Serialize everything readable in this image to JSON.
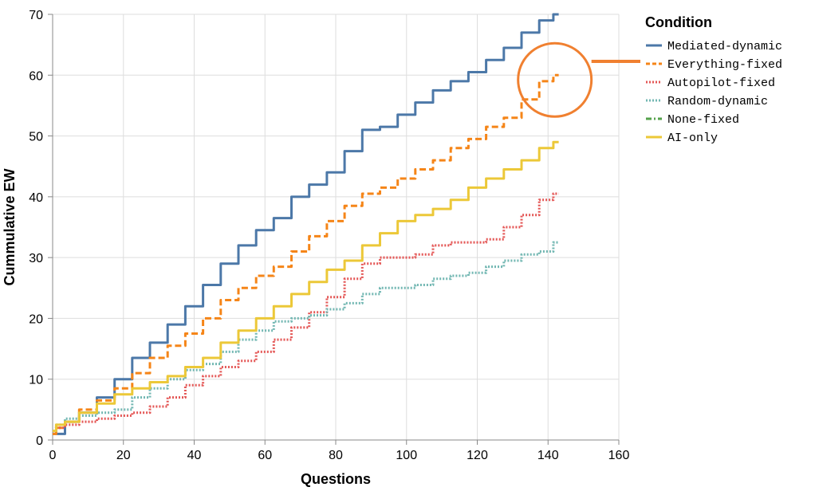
{
  "chart_data": {
    "type": "line",
    "xlabel": "Questions",
    "ylabel": "Cummulative EW",
    "xlim": [
      0,
      160
    ],
    "ylim": [
      0,
      70
    ],
    "x_ticks": [
      0,
      20,
      40,
      60,
      80,
      100,
      120,
      140,
      160
    ],
    "y_ticks": [
      0,
      10,
      20,
      30,
      40,
      50,
      60,
      70
    ],
    "grid": true,
    "legend": {
      "title": "Condition",
      "placement": "right"
    },
    "annotation": {
      "shape": "circle",
      "color": "#F08030",
      "target_series": "Everything-fixed",
      "at": [
        141,
        60
      ]
    },
    "series": [
      {
        "name": "Mediated-dynamic",
        "color": "#4C78A8",
        "dash": "solid",
        "x": [
          0,
          2,
          5,
          10,
          15,
          20,
          25,
          30,
          35,
          40,
          45,
          50,
          55,
          60,
          65,
          70,
          75,
          80,
          85,
          90,
          95,
          100,
          105,
          110,
          115,
          120,
          125,
          130,
          135,
          140,
          143
        ],
        "y": [
          1,
          1,
          3,
          4.5,
          7,
          10,
          13.5,
          16,
          19,
          22,
          25.5,
          29,
          32,
          34.5,
          36.5,
          40,
          42,
          44,
          47.5,
          51,
          51.5,
          53.5,
          55.5,
          57.5,
          59,
          60.5,
          62.5,
          64.5,
          67,
          69,
          70
        ]
      },
      {
        "name": "Everything-fixed",
        "color": "#F58518",
        "dash": "dashed",
        "x": [
          0,
          2,
          5,
          10,
          15,
          20,
          25,
          30,
          35,
          40,
          45,
          50,
          55,
          60,
          65,
          70,
          75,
          80,
          85,
          90,
          95,
          100,
          105,
          110,
          115,
          120,
          125,
          130,
          135,
          140,
          143
        ],
        "y": [
          1,
          2,
          3,
          5,
          6.5,
          8.5,
          11,
          13.5,
          15.5,
          17.5,
          20,
          23,
          25,
          27,
          28.5,
          31,
          33.5,
          36,
          38.5,
          40.5,
          41.5,
          43,
          44.5,
          46,
          48,
          49.5,
          51.5,
          53,
          56,
          59,
          60
        ]
      },
      {
        "name": "Autopilot-fixed",
        "color": "#E45756",
        "dash": "dotted",
        "x": [
          0,
          2,
          5,
          10,
          15,
          20,
          25,
          30,
          35,
          40,
          45,
          50,
          55,
          60,
          65,
          70,
          75,
          80,
          85,
          90,
          95,
          100,
          105,
          110,
          115,
          120,
          125,
          130,
          135,
          140,
          143
        ],
        "y": [
          1.5,
          2,
          2.5,
          3,
          3.5,
          4,
          4.5,
          5.5,
          7,
          9,
          10.5,
          12,
          13,
          14.5,
          16.5,
          18.5,
          21,
          23.5,
          26.5,
          29,
          30,
          30,
          30.5,
          32,
          32.5,
          32.5,
          33,
          35,
          37,
          39.5,
          40.5
        ]
      },
      {
        "name": "Random-dynamic",
        "color": "#72B7B2",
        "dash": "dotted",
        "x": [
          0,
          2,
          5,
          10,
          15,
          20,
          25,
          30,
          35,
          40,
          45,
          50,
          55,
          60,
          65,
          70,
          75,
          80,
          85,
          90,
          95,
          100,
          105,
          110,
          115,
          120,
          125,
          130,
          135,
          140,
          143
        ],
        "y": [
          1.5,
          2.5,
          3.5,
          4,
          4.5,
          5,
          7,
          8.5,
          10,
          11.5,
          12.5,
          14.5,
          16.5,
          18,
          19.5,
          20,
          20.5,
          21.5,
          22.5,
          24,
          25,
          25,
          25.5,
          26.5,
          27,
          27.5,
          28.5,
          29.5,
          30.5,
          31,
          32.5
        ]
      },
      {
        "name": "None-fixed",
        "color": "#54A24B",
        "dash": "dashdot",
        "x": [],
        "y": []
      },
      {
        "name": "AI-only",
        "color": "#ECC838",
        "dash": "solid",
        "x": [
          0,
          2,
          5,
          10,
          15,
          20,
          25,
          30,
          35,
          40,
          45,
          50,
          55,
          60,
          65,
          70,
          75,
          80,
          85,
          90,
          95,
          100,
          105,
          110,
          115,
          120,
          125,
          130,
          135,
          140,
          143
        ],
        "y": [
          1.5,
          2.5,
          3,
          4.5,
          6,
          7.5,
          8.5,
          9.5,
          10.5,
          12,
          13.5,
          16,
          18,
          20,
          22,
          24,
          26,
          28,
          29.5,
          32,
          34,
          36,
          37,
          38,
          39.5,
          41.5,
          43,
          44.5,
          46,
          48,
          49
        ]
      }
    ]
  }
}
